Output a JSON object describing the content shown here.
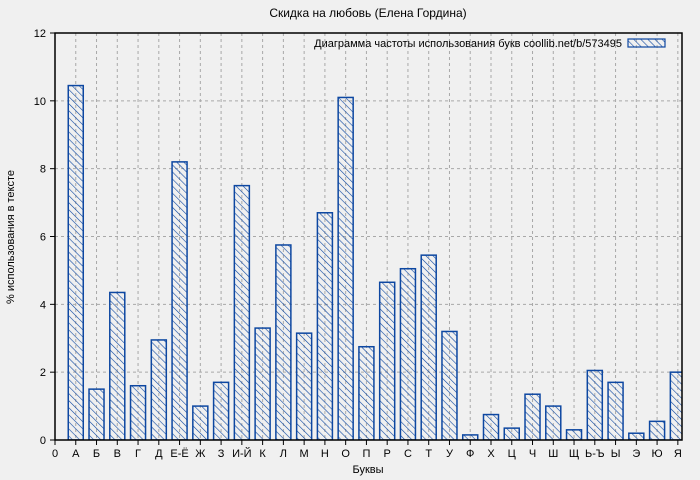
{
  "chart_data": {
    "type": "bar",
    "title": "Скидка на любовь (Елена Гордина)",
    "legend": "Диаграмма частоты использования букв coollib.net/b/573495",
    "legend_position": "top-right",
    "xlabel": "Буквы",
    "ylabel": "% использования в тексте",
    "origin_label": "0",
    "categories": [
      "А",
      "Б",
      "В",
      "Г",
      "Д",
      "Е-Ё",
      "Ж",
      "З",
      "И-Й",
      "К",
      "Л",
      "М",
      "Н",
      "О",
      "П",
      "Р",
      "С",
      "Т",
      "У",
      "Ф",
      "Х",
      "Ц",
      "Ч",
      "Ш",
      "Щ",
      "Ь-Ъ",
      "Ы",
      "Э",
      "Ю",
      "Я"
    ],
    "values": [
      10.45,
      1.5,
      4.35,
      1.6,
      2.95,
      8.2,
      1.0,
      1.7,
      7.5,
      3.3,
      5.75,
      3.15,
      6.7,
      10.1,
      2.75,
      4.65,
      5.05,
      5.45,
      3.2,
      0.15,
      0.75,
      0.35,
      1.35,
      1.0,
      0.3,
      2.05,
      1.7,
      0.2,
      0.55,
      2.0
    ],
    "ylim": [
      0,
      12
    ],
    "yticks": [
      0,
      2,
      4,
      6,
      8,
      10,
      12
    ],
    "grid": true,
    "colors": {
      "bar": "#0d47a1",
      "grid": "#a8a8a8",
      "background": "#f0f0f0",
      "border": "#000000",
      "text": "#000000"
    }
  }
}
